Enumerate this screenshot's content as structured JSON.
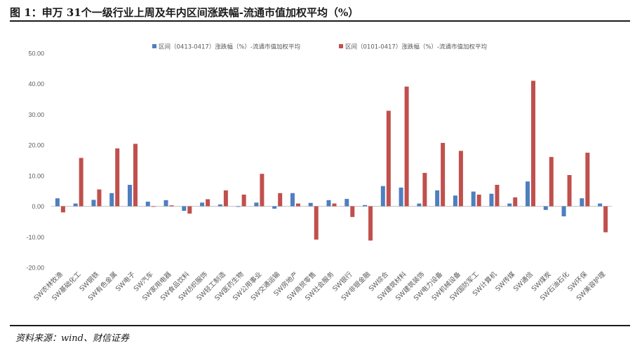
{
  "title": "图 1：申万 31个一级行业上周及年内区间涨跌幅-流通市值加权平均（%）",
  "source": "资料来源：wind、财信证券",
  "colors": {
    "series1": "#4e7fbf",
    "series2": "#c0504d",
    "axis": "#bfbfbf",
    "text": "#595959"
  },
  "chart_data": {
    "type": "bar",
    "ylim": [
      -20,
      50
    ],
    "yticks": [
      -20,
      -10,
      0,
      10,
      20,
      30,
      40,
      50
    ],
    "ytick_labels": [
      "-20.00",
      "-10.00",
      "0.00",
      "10.00",
      "20.00",
      "30.00",
      "40.00",
      "50.00"
    ],
    "grid": false,
    "legend": "top-center",
    "categories": [
      "SW农林牧渔",
      "SW基础化工",
      "SW钢铁",
      "SW有色金属",
      "SW电子",
      "SW汽车",
      "SW家用电器",
      "SW食品饮料",
      "SW纺织服饰",
      "SW轻工制造",
      "SW医药生物",
      "SW公用事业",
      "SW交通运输",
      "SW房地产",
      "SW商贸零售",
      "SW社会服务",
      "SW银行",
      "SW非银金融",
      "SW综合",
      "SW建筑材料",
      "SW建筑装饰",
      "SW电力设备",
      "SW机械设备",
      "SW国防军工",
      "SW计算机",
      "SW传媒",
      "SW通信",
      "SW煤炭",
      "SW石油石化",
      "SW环保",
      "SW美容护理"
    ],
    "series": [
      {
        "name": "区间（0413-0417）涨跌幅（%）-流通市值加权平均",
        "color": "#4e7fbf",
        "values": [
          2.6,
          0.9,
          2.1,
          4.3,
          7.0,
          1.5,
          2.0,
          -1.5,
          1.2,
          0.6,
          -0.2,
          1.2,
          -0.8,
          4.3,
          1.1,
          2.0,
          2.4,
          0.4,
          6.6,
          6.1,
          0.9,
          5.2,
          3.5,
          4.8,
          4.1,
          0.9,
          8.1,
          -1.2,
          -3.3,
          2.6,
          0.9
        ]
      },
      {
        "name": "区间（0101-0417）涨跌幅（%）-流通市值加权平均",
        "color": "#c0504d",
        "values": [
          -2.0,
          15.8,
          5.5,
          18.9,
          20.4,
          -0.1,
          0.3,
          -2.4,
          2.3,
          5.2,
          3.8,
          10.6,
          4.3,
          0.9,
          -10.9,
          0.9,
          -3.5,
          -11.2,
          31.2,
          39.1,
          10.9,
          20.7,
          18.1,
          3.8,
          7.0,
          2.9,
          41.0,
          16.1,
          10.2,
          17.5,
          -8.5
        ]
      }
    ]
  }
}
